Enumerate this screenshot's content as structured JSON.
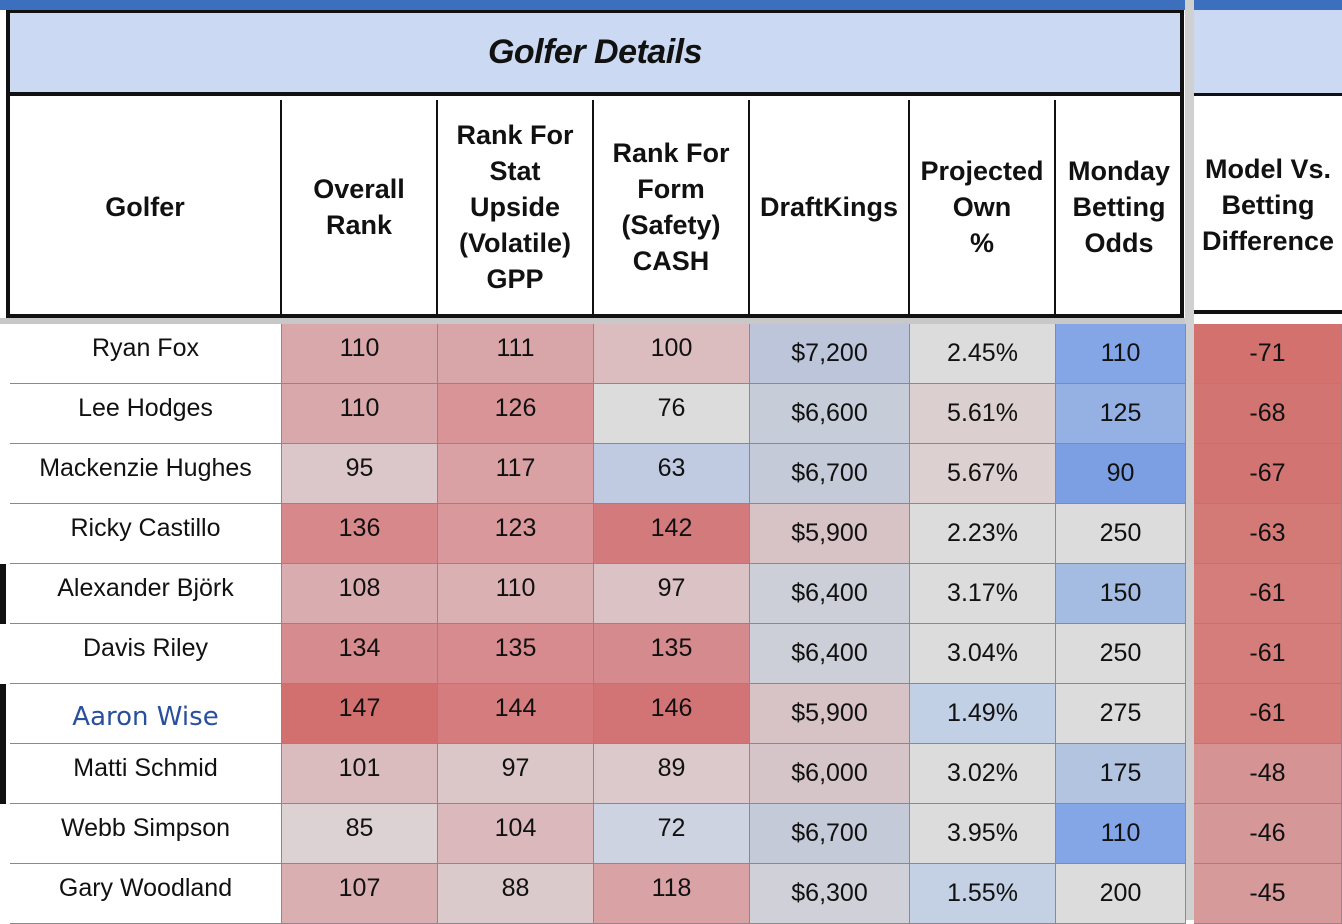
{
  "title": "Golfer Details",
  "headers": [
    {
      "label": "Golfer"
    },
    {
      "label": "Overall\nRank"
    },
    {
      "label": "Rank For\nStat\nUpside\n(Volatile)\nGPP"
    },
    {
      "label": "Rank For\nForm\n(Safety)\nCASH"
    },
    {
      "label": "DraftKings"
    },
    {
      "label": "Projected\nOwn\n%"
    },
    {
      "label": "Monday\nBetting\nOdds"
    },
    {
      "label": "Model Vs.\nBetting\nDifference"
    }
  ],
  "rows": [
    {
      "golfer": "Ryan Fox",
      "overall": "110",
      "upside": "111",
      "form": "100",
      "dk": "$7,200",
      "own": "2.45%",
      "odds": "110",
      "diff": "-71",
      "colors": {
        "overall": "#d8a8ab",
        "upside": "#d8a6a8",
        "form": "#dbbcbf",
        "dk": "#bcc5da",
        "own": "#dcdcdc",
        "odds": "#84a6e6",
        "diff": "#d2716e"
      }
    },
    {
      "golfer": "Lee Hodges",
      "overall": "110",
      "upside": "126",
      "form": "76",
      "dk": "$6,600",
      "own": "5.61%",
      "odds": "125",
      "diff": "-68",
      "colors": {
        "overall": "#d8a8ab",
        "upside": "#d99497",
        "form": "#dcdcdc",
        "dk": "#c7ccd9",
        "own": "#dccfd0",
        "odds": "#95b1e3",
        "diff": "#d27471"
      }
    },
    {
      "golfer": "Mackenzie Hughes",
      "overall": "95",
      "upside": "117",
      "form": "63",
      "dk": "$6,700",
      "own": "5.67%",
      "odds": "90",
      "diff": "-67",
      "colors": {
        "overall": "#dbc7c9",
        "upside": "#d9a1a3",
        "form": "#c0cbe1",
        "dk": "#c5cad9",
        "own": "#dcd0d1",
        "odds": "#7c9fe4",
        "diff": "#d27572"
      }
    },
    {
      "golfer": "Ricky Castillo",
      "overall": "136",
      "upside": "123",
      "form": "142",
      "dk": "$5,900",
      "own": "2.23%",
      "odds": "250",
      "diff": "-63",
      "colors": {
        "overall": "#d6888b",
        "upside": "#d9999c",
        "form": "#d27a7c",
        "dk": "#d7c2c5",
        "own": "#dcdcdc",
        "odds": "#dcdcdc",
        "diff": "#d37a77"
      }
    },
    {
      "golfer": "Alexander Björk",
      "overall": "108",
      "upside": "110",
      "form": "97",
      "dk": "$6,400",
      "own": "3.17%",
      "odds": "150",
      "diff": "-61",
      "colors": {
        "overall": "#d9adb0",
        "upside": "#dab0b3",
        "form": "#dbc2c5",
        "dk": "#cdcfd8",
        "own": "#dcdcdc",
        "odds": "#a4bbe2",
        "diff": "#d47d7a"
      }
    },
    {
      "golfer": "Davis Riley",
      "overall": "134",
      "upside": "135",
      "form": "135",
      "dk": "$6,400",
      "own": "3.04%",
      "odds": "250",
      "diff": "-61",
      "colors": {
        "overall": "#d68b8e",
        "upside": "#d78b8e",
        "form": "#d58a8d",
        "dk": "#cdcfd8",
        "own": "#dcdcdc",
        "odds": "#dcdcdc",
        "diff": "#d47d7a"
      }
    },
    {
      "golfer": "Aaron Wise",
      "overall": "147",
      "upside": "144",
      "form": "146",
      "dk": "$5,900",
      "own": "1.49%",
      "odds": "275",
      "diff": "-61",
      "colors": {
        "overall": "#d2706f",
        "upside": "#d47c7e",
        "form": "#d27476",
        "dk": "#d7c2c5",
        "own": "#c2d0e5",
        "odds": "#dcdcdc",
        "diff": "#d47d7a"
      }
    },
    {
      "golfer": "Matti Schmid",
      "overall": "101",
      "upside": "97",
      "form": "89",
      "dk": "$6,000",
      "own": "3.02%",
      "odds": "175",
      "diff": "-48",
      "colors": {
        "overall": "#dabcbf",
        "upside": "#dbc6c8",
        "form": "#dcc9cb",
        "dk": "#d5c5c8",
        "own": "#dcdcdc",
        "odds": "#b3c4e0",
        "diff": "#d69394"
      }
    },
    {
      "golfer": "Webb Simpson",
      "overall": "85",
      "upside": "104",
      "form": "72",
      "dk": "$6,700",
      "own": "3.95%",
      "odds": "110",
      "diff": "-46",
      "colors": {
        "overall": "#dcd2d3",
        "upside": "#dab8bb",
        "form": "#cdd3e0",
        "dk": "#c5cad9",
        "own": "#dcdcdc",
        "odds": "#84a6e6",
        "diff": "#d69798"
      }
    },
    {
      "golfer": "Gary Woodland",
      "overall": "107",
      "upside": "88",
      "form": "118",
      "dk": "$6,300",
      "own": "1.55%",
      "odds": "200",
      "diff": "-45",
      "colors": {
        "overall": "#d9afb2",
        "upside": "#dbcacc",
        "form": "#d9a3a5",
        "dk": "#d0d0d8",
        "own": "#c4d1e4",
        "odds": "#dcdcdc",
        "diff": "#d69a9b"
      }
    }
  ]
}
